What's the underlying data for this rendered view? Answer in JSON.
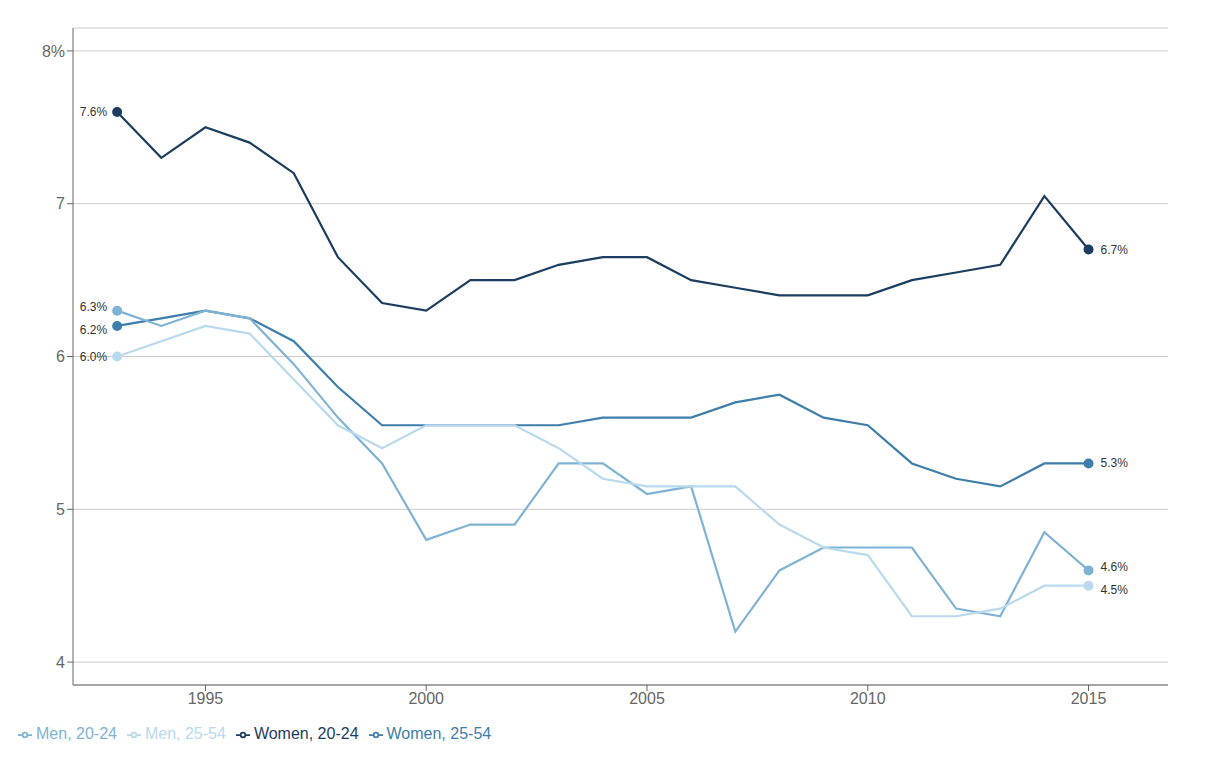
{
  "chart_data": {
    "type": "line",
    "x": [
      1993,
      1994,
      1995,
      1996,
      1997,
      1998,
      1999,
      2000,
      2001,
      2002,
      2003,
      2004,
      2005,
      2006,
      2007,
      2008,
      2009,
      2010,
      2011,
      2012,
      2013,
      2014,
      2015
    ],
    "series": [
      {
        "name": "Women, 20-24",
        "color": "#1b3d5f",
        "values": [
          7.6,
          7.3,
          7.5,
          7.4,
          7.2,
          6.65,
          6.35,
          6.3,
          6.5,
          6.5,
          6.6,
          6.65,
          6.65,
          6.5,
          6.45,
          6.4,
          6.4,
          6.4,
          6.5,
          6.55,
          6.6,
          7.05,
          6.7
        ]
      },
      {
        "name": "Women, 25-54",
        "color": "#3d7eaa",
        "values": [
          6.2,
          6.25,
          6.3,
          6.25,
          6.1,
          5.8,
          5.55,
          5.55,
          5.55,
          5.55,
          5.55,
          5.6,
          5.6,
          5.6,
          5.7,
          5.75,
          5.6,
          5.55,
          5.3,
          5.2,
          5.15,
          5.3,
          5.3
        ]
      },
      {
        "name": "Men, 20-24",
        "color": "#7fb3d3",
        "values": [
          6.3,
          6.2,
          6.3,
          6.25,
          5.95,
          5.6,
          5.3,
          4.8,
          4.9,
          4.9,
          5.3,
          5.3,
          5.1,
          5.15,
          4.2,
          4.6,
          4.75,
          4.75,
          4.75,
          4.35,
          4.3,
          4.85,
          4.6
        ]
      },
      {
        "name": "Men, 25-54",
        "color": "#b8d9ee",
        "values": [
          6.0,
          6.1,
          6.2,
          6.15,
          5.85,
          5.55,
          5.4,
          5.55,
          5.55,
          5.55,
          5.4,
          5.2,
          5.15,
          5.15,
          5.15,
          4.9,
          4.75,
          4.7,
          4.3,
          4.3,
          4.35,
          4.5,
          4.5
        ]
      }
    ],
    "xlim": [
      1992.0,
      2016.8
    ],
    "xticks": [
      1995,
      2000,
      2005,
      2010,
      2015
    ],
    "ylim": [
      3.85,
      8.15
    ],
    "yticks": [
      4,
      5,
      6,
      7,
      {
        "value": 8,
        "label": "8%"
      }
    ],
    "grid": true,
    "legend": "lower left",
    "annotations": [
      {
        "text": "7.6%",
        "x": 1993,
        "y": 7.6
      },
      {
        "text": "6.2%",
        "x": 1993,
        "y": 6.2
      },
      {
        "text": "6.3%",
        "x": 1993,
        "y": 6.3
      },
      {
        "text": "6.0%",
        "x": 1993,
        "y": 6.0
      },
      {
        "text": "6.7%",
        "x": 2015,
        "y": 6.7
      },
      {
        "text": "5.3%",
        "x": 2015,
        "y": 5.3
      },
      {
        "text": "4.6%",
        "x": 2015,
        "y": 4.6
      },
      {
        "text": "4.5%",
        "x": 2015,
        "y": 4.5
      }
    ]
  }
}
